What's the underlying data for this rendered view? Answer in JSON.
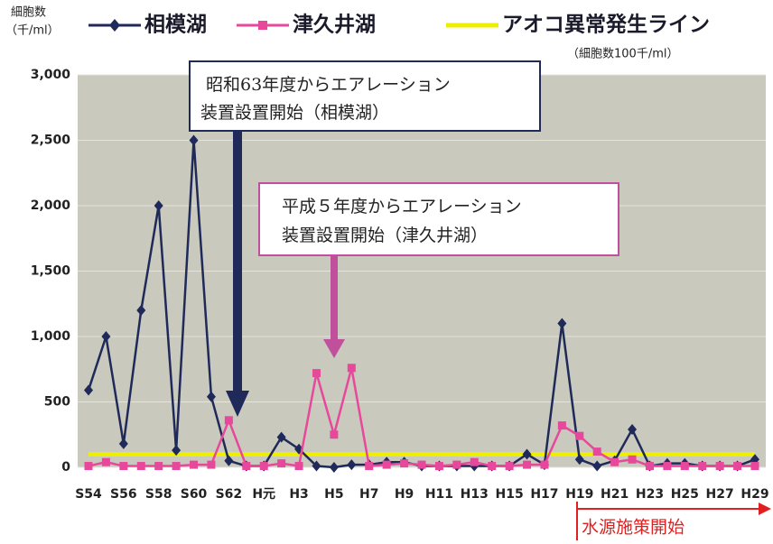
{
  "chart_data": {
    "type": "line",
    "y_label": [
      "細胞数",
      "（千/ml）"
    ],
    "legend_note": "（細胞数100千/ml）",
    "annotations": [
      "昭和63年度からエアレーション",
      "装置設置開始（相模湖）",
      "平成５年度からエアレーション",
      "装置設置開始（津久井湖）",
      "水源施策開始"
    ],
    "categories": [
      "S54",
      null,
      "S56",
      null,
      "S58",
      null,
      "S60",
      null,
      "S62",
      null,
      "H元",
      null,
      "H3",
      null,
      "H5",
      null,
      "H7",
      null,
      "H9",
      null,
      "H11",
      null,
      "H13",
      null,
      "H15",
      null,
      "H17",
      null,
      "H19",
      null,
      "H21",
      null,
      "H23",
      null,
      "H25",
      null,
      "H27",
      null,
      "H29"
    ],
    "series": [
      {
        "name": "相模湖",
        "color": "#1f2a5a",
        "marker": "diamond",
        "values": [
          590,
          1000,
          180,
          1200,
          2000,
          130,
          2500,
          540,
          50,
          10,
          10,
          230,
          140,
          10,
          0,
          20,
          20,
          40,
          40,
          10,
          10,
          10,
          10,
          10,
          10,
          100,
          20,
          1100,
          60,
          10,
          50,
          290,
          10,
          30,
          30,
          10,
          10,
          10,
          60
        ]
      },
      {
        "name": "津久井湖",
        "color": "#e8489b",
        "marker": "square",
        "values": [
          10,
          40,
          10,
          10,
          10,
          10,
          20,
          20,
          360,
          10,
          10,
          30,
          10,
          720,
          250,
          760,
          10,
          20,
          30,
          20,
          10,
          20,
          40,
          10,
          10,
          20,
          20,
          320,
          240,
          120,
          40,
          60,
          10,
          10,
          10,
          10,
          10,
          10,
          10
        ]
      },
      {
        "name": "アオコ異常発生ライン",
        "color": "#eeee00",
        "marker": "none",
        "values": [
          100,
          100,
          100,
          100,
          100,
          100,
          100,
          100,
          100,
          100,
          100,
          100,
          100,
          100,
          100,
          100,
          100,
          100,
          100,
          100,
          100,
          100,
          100,
          100,
          100,
          100,
          100,
          100,
          100,
          100,
          100,
          100,
          100,
          100,
          100,
          100,
          100,
          100,
          100
        ]
      }
    ],
    "ylim": [
      0,
      3000
    ],
    "yticks": [
      0,
      500,
      {
        "value": 1000,
        "label": "1,000"
      },
      {
        "value": 1500,
        "label": "1,500"
      },
      {
        "value": 2000,
        "label": "2,000"
      },
      {
        "value": 2500,
        "label": "2,500"
      },
      {
        "value": 3000,
        "label": "3,000"
      }
    ],
    "grid": true
  }
}
